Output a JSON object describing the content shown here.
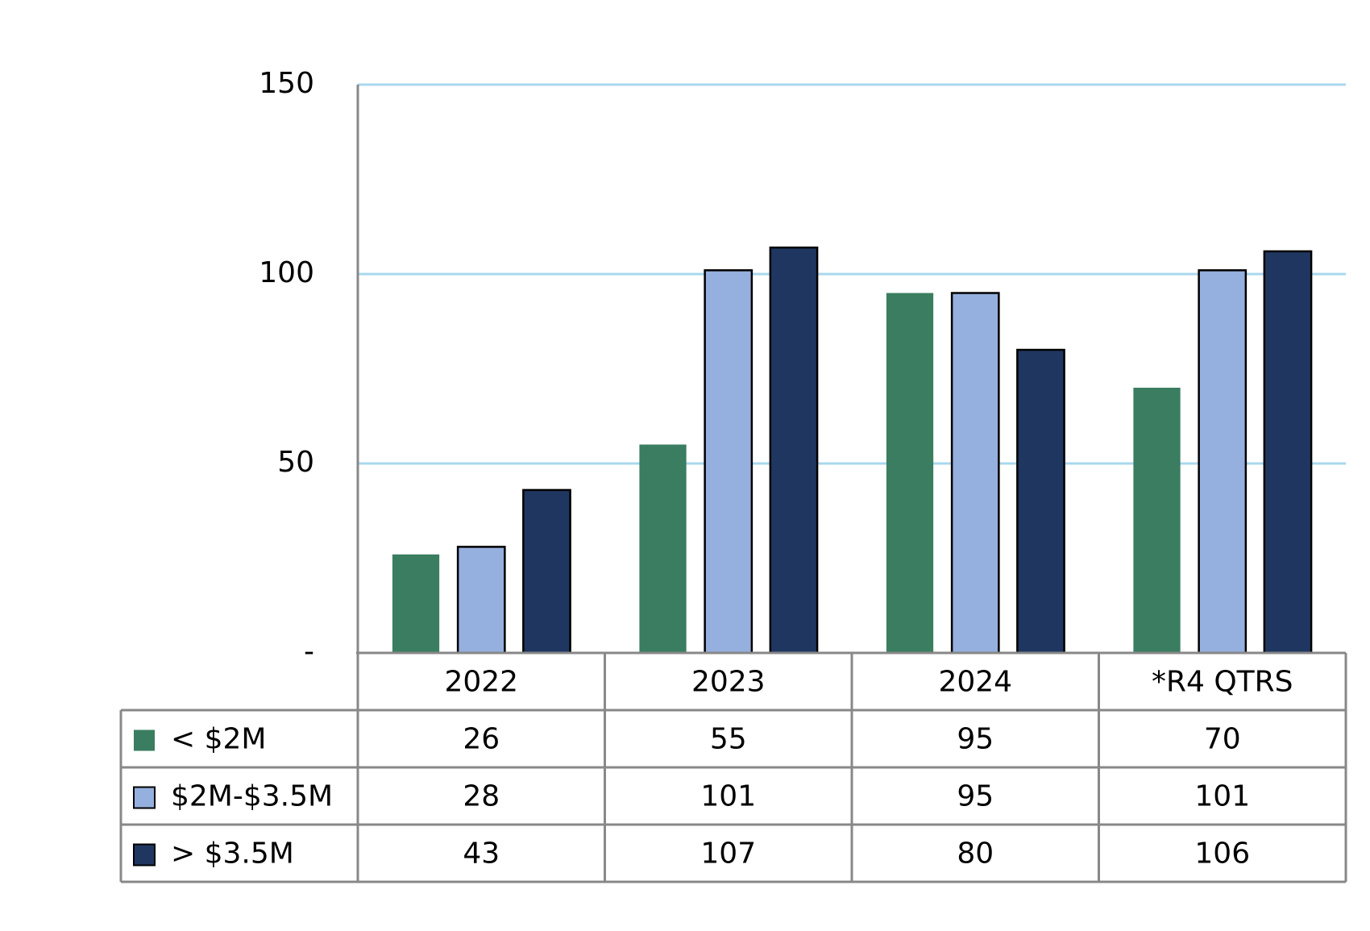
{
  "chart_data": {
    "type": "bar",
    "categories": [
      "2022",
      "2023",
      "2024",
      "*R4 QTRS"
    ],
    "series": [
      {
        "name": "< $2M",
        "color": "#3a7d60",
        "values": [
          26,
          55,
          95,
          70
        ]
      },
      {
        "name": "$2M-$3.5M",
        "color": "#95b0de",
        "values": [
          28,
          101,
          95,
          101
        ]
      },
      {
        "name": "> $3.5M",
        "color": "#1f3760",
        "values": [
          43,
          107,
          80,
          106
        ]
      }
    ],
    "ylim": [
      0,
      150
    ],
    "yticks": [
      {
        "value": 0,
        "label": "-"
      },
      50,
      100,
      150
    ],
    "grid": true
  }
}
